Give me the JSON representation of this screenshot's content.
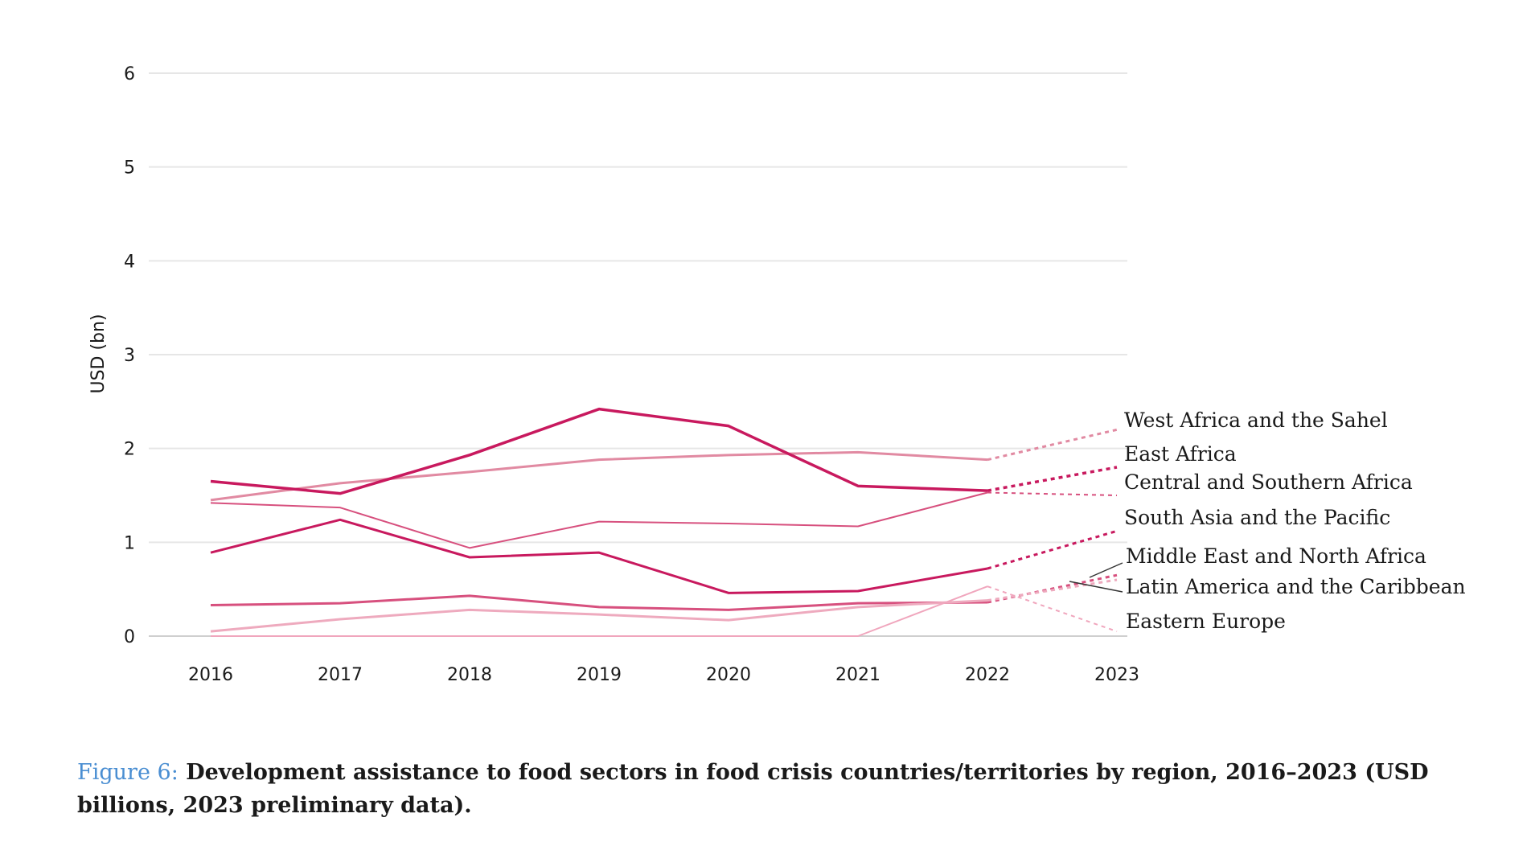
{
  "chart_data": {
    "type": "line",
    "title": "",
    "xlabel": "",
    "ylabel": "USD (bn)",
    "ylim": [
      0,
      6
    ],
    "yticks": [
      "0",
      "1",
      "2",
      "3",
      "4",
      "5",
      "6"
    ],
    "categories": [
      "2016",
      "2017",
      "2018",
      "2019",
      "2020",
      "2021",
      "2022",
      "2023"
    ],
    "note": "Segment 2022–2023 drawn dashed (preliminary data)",
    "series": [
      {
        "name": "West Africa and the Sahel",
        "color": "#e18aa2",
        "values": [
          1.45,
          1.63,
          1.75,
          1.88,
          1.93,
          1.96,
          1.88,
          2.2
        ]
      },
      {
        "name": "East Africa",
        "color": "#c8195e",
        "values": [
          1.65,
          1.52,
          1.93,
          2.42,
          2.24,
          1.6,
          1.55,
          1.8
        ]
      },
      {
        "name": "Central and Southern Africa",
        "color": "#d7507e",
        "values": [
          1.42,
          1.37,
          0.94,
          1.22,
          1.2,
          1.17,
          1.53,
          1.5
        ]
      },
      {
        "name": "South Asia and the Pacific",
        "color": "#c8195e",
        "values": [
          0.89,
          1.24,
          0.84,
          0.89,
          0.46,
          0.48,
          0.72,
          1.12
        ]
      },
      {
        "name": "Middle East and North Africa",
        "color": "#d7507e",
        "values": [
          0.33,
          0.35,
          0.43,
          0.31,
          0.28,
          0.35,
          0.36,
          0.65
        ]
      },
      {
        "name": "Latin America and the Caribbean",
        "color": "#eeaabe",
        "values": [
          0.05,
          0.18,
          0.28,
          0.23,
          0.17,
          0.31,
          0.38,
          0.6
        ]
      },
      {
        "name": "Eastern Europe",
        "color": "#f0a6bd",
        "values": [
          0.0,
          0.0,
          0.0,
          0.0,
          0.0,
          0.0,
          0.53,
          0.05
        ]
      }
    ]
  },
  "labels": {
    "west_africa": "West Africa and the Sahel",
    "east_africa": "East Africa",
    "central_southern": "Central and Southern Africa",
    "south_asia": "South Asia and the Pacific",
    "mena": "Middle East and North Africa",
    "latam": "Latin America and the Caribbean",
    "eastern_europe": "Eastern Europe"
  },
  "caption": {
    "figure_label": "Figure 6:",
    "text": "Development assistance to food sectors in food crisis countries/territories by region, 2016–2023 (USD billions, 2023 preliminary data)."
  }
}
